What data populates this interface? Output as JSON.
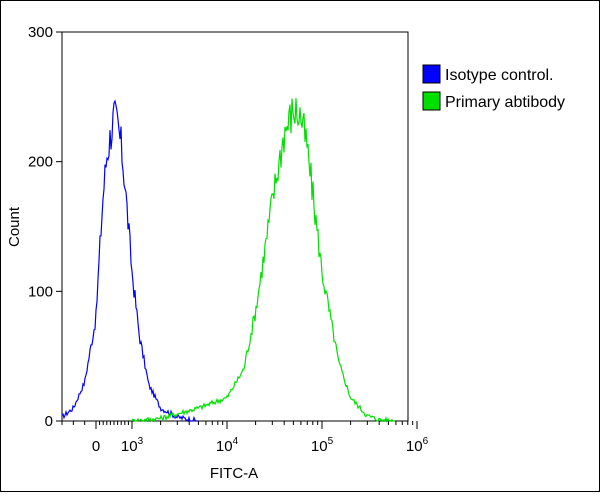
{
  "chart_data": {
    "type": "line",
    "title": "",
    "xlabel": "FITC-A",
    "ylabel": "Count",
    "x_scale": "biexponential",
    "xlim": [
      -300,
      1000000
    ],
    "ylim": [
      0,
      300
    ],
    "x_ticks": [
      {
        "value": 0,
        "label": "0"
      },
      {
        "value": 1000,
        "label": "10",
        "exp": "3"
      },
      {
        "value": 10000,
        "label": "10",
        "exp": "4"
      },
      {
        "value": 100000,
        "label": "10",
        "exp": "5"
      },
      {
        "value": 1000000,
        "label": "10",
        "exp": "6"
      }
    ],
    "y_ticks": [
      0,
      100,
      200,
      300
    ],
    "grid": false,
    "legend_position": "right",
    "series": [
      {
        "name": "Isotype control.",
        "color": "#0000ff",
        "x": [
          -300,
          -200,
          -100,
          0,
          100,
          200,
          300,
          400,
          500,
          600,
          700,
          800,
          900,
          1000,
          1200,
          1500,
          2000,
          3000,
          5000
        ],
        "values": [
          3,
          10,
          30,
          80,
          130,
          175,
          205,
          220,
          235,
          228,
          212,
          185,
          150,
          115,
          65,
          28,
          10,
          3,
          0
        ]
      },
      {
        "name": "Primary abtibody",
        "color": "#00e000",
        "x": [
          1000,
          2000,
          5000,
          10000,
          15000,
          20000,
          30000,
          40000,
          50000,
          60000,
          70000,
          80000,
          100000,
          150000,
          200000,
          300000,
          400000,
          600000
        ],
        "values": [
          0,
          2,
          10,
          18,
          40,
          85,
          170,
          222,
          240,
          235,
          210,
          175,
          115,
          45,
          18,
          4,
          1,
          0
        ]
      }
    ]
  }
}
